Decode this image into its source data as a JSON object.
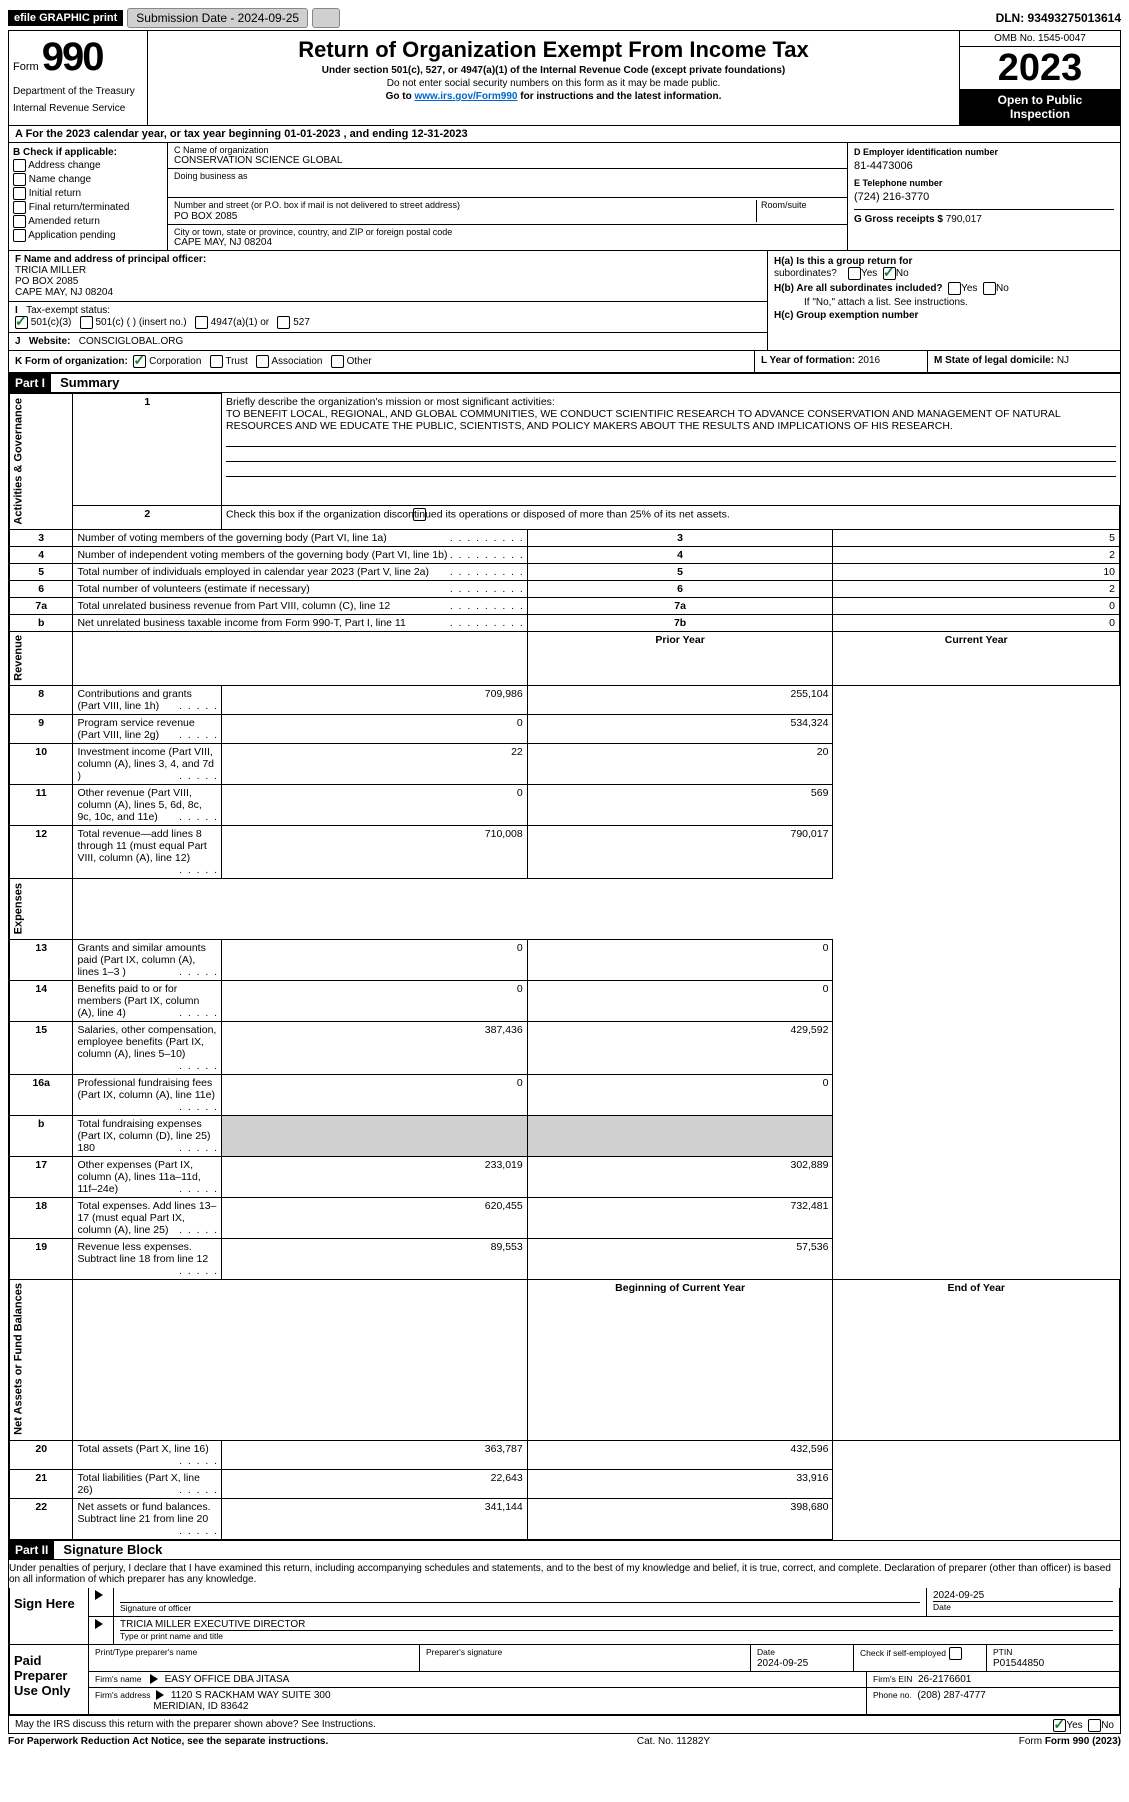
{
  "topbar": {
    "efile": "efile GRAPHIC print",
    "submission": "Submission Date - 2024-09-25",
    "dln": "DLN: 93493275013614"
  },
  "header": {
    "form_label": "Form",
    "form_number": "990",
    "title": "Return of Organization Exempt From Income Tax",
    "subtitle": "Under section 501(c), 527, or 4947(a)(1) of the Internal Revenue Code (except private foundations)",
    "warning": "Do not enter social security numbers on this form as it may be made public.",
    "goto": "Go to ",
    "url": "www.irs.gov/Form990",
    "goto_suffix": " for instructions and the latest information.",
    "dept": "Department of the Treasury",
    "irs": "Internal Revenue Service",
    "omb": "OMB No. 1545-0047",
    "year": "2023",
    "inspect1": "Open to Public",
    "inspect2": "Inspection"
  },
  "rowA": "A For the 2023 calendar year, or tax year beginning 01-01-2023   , and ending 12-31-2023",
  "colB": {
    "label": "B Check if applicable:",
    "items": [
      "Address change",
      "Name change",
      "Initial return",
      "Final return/terminated",
      "Amended return",
      "Application pending"
    ]
  },
  "colC": {
    "name_label": "C Name of organization",
    "name": "CONSERVATION SCIENCE GLOBAL",
    "dba_label": "Doing business as",
    "dba": "",
    "street_label": "Number and street (or P.O. box if mail is not delivered to street address)",
    "street": "PO BOX 2085",
    "room_label": "Room/suite",
    "room": "",
    "city_label": "City or town, state or province, country, and ZIP or foreign postal code",
    "city": "CAPE MAY, NJ  08204"
  },
  "colD": {
    "ein_label": "D Employer identification number",
    "ein": "81-4473006",
    "phone_label": "E Telephone number",
    "phone": "(724) 216-3770",
    "gross_label": "G Gross receipts $",
    "gross": "790,017"
  },
  "rowF": {
    "label": "F  Name and address of principal officer:",
    "name": "TRICIA MILLER",
    "street": "PO BOX 2085",
    "city": "CAPE MAY, NJ  08204"
  },
  "rowH": {
    "a": "H(a)  Is this a group return for",
    "a2": "subordinates?",
    "b": "H(b)  Are all subordinates included?",
    "b_note": "If \"No,\" attach a list. See instructions.",
    "c": "H(c)  Group exemption number",
    "yes": "Yes",
    "no": "No"
  },
  "rowI": {
    "label": "Tax-exempt status:",
    "opts": [
      "501(c)(3)",
      "501(c) (  ) (insert no.)",
      "4947(a)(1) or",
      "527"
    ]
  },
  "rowJ": {
    "label": "Website:",
    "value": "CONSCIGLOBAL.ORG"
  },
  "rowK": {
    "label": "K Form of organization:",
    "opts": [
      "Corporation",
      "Trust",
      "Association",
      "Other"
    ],
    "year_label": "L Year of formation:",
    "year": "2016",
    "state_label": "M State of legal domicile:",
    "state": "NJ"
  },
  "part1": {
    "header": "Part I",
    "title": "Summary",
    "line1_label": "Briefly describe the organization's mission or most significant activities:",
    "mission": "TO BENEFIT LOCAL, REGIONAL, AND GLOBAL COMMUNITIES, WE CONDUCT SCIENTIFIC RESEARCH TO ADVANCE CONSERVATION AND MANAGEMENT OF NATURAL RESOURCES AND WE EDUCATE THE PUBLIC, SCIENTISTS, AND POLICY MAKERS ABOUT THE RESULTS AND IMPLICATIONS OF HIS RESEARCH.",
    "line2": "Check this box       if the organization discontinued its operations or disposed of more than 25% of its net assets.",
    "vert_gov": "Activities & Governance",
    "vert_rev": "Revenue",
    "vert_exp": "Expenses",
    "vert_net": "Net Assets or Fund Balances",
    "lines_gov": [
      {
        "n": "3",
        "d": "Number of voting members of the governing body (Part VI, line 1a)",
        "box": "3",
        "v": "5"
      },
      {
        "n": "4",
        "d": "Number of independent voting members of the governing body (Part VI, line 1b)",
        "box": "4",
        "v": "2"
      },
      {
        "n": "5",
        "d": "Total number of individuals employed in calendar year 2023 (Part V, line 2a)",
        "box": "5",
        "v": "10"
      },
      {
        "n": "6",
        "d": "Total number of volunteers (estimate if necessary)",
        "box": "6",
        "v": "2"
      },
      {
        "n": "7a",
        "d": "Total unrelated business revenue from Part VIII, column (C), line 12",
        "box": "7a",
        "v": "0"
      },
      {
        "n": "b",
        "d": "Net unrelated business taxable income from Form 990-T, Part I, line 11",
        "box": "7b",
        "v": "0"
      }
    ],
    "col_prior": "Prior Year",
    "col_current": "Current Year",
    "lines_rev": [
      {
        "n": "8",
        "d": "Contributions and grants (Part VIII, line 1h)",
        "p": "709,986",
        "c": "255,104"
      },
      {
        "n": "9",
        "d": "Program service revenue (Part VIII, line 2g)",
        "p": "0",
        "c": "534,324"
      },
      {
        "n": "10",
        "d": "Investment income (Part VIII, column (A), lines 3, 4, and 7d )",
        "p": "22",
        "c": "20"
      },
      {
        "n": "11",
        "d": "Other revenue (Part VIII, column (A), lines 5, 6d, 8c, 9c, 10c, and 11e)",
        "p": "0",
        "c": "569"
      },
      {
        "n": "12",
        "d": "Total revenue—add lines 8 through 11 (must equal Part VIII, column (A), line 12)",
        "p": "710,008",
        "c": "790,017"
      }
    ],
    "lines_exp": [
      {
        "n": "13",
        "d": "Grants and similar amounts paid (Part IX, column (A), lines 1–3 )",
        "p": "0",
        "c": "0"
      },
      {
        "n": "14",
        "d": "Benefits paid to or for members (Part IX, column (A), line 4)",
        "p": "0",
        "c": "0"
      },
      {
        "n": "15",
        "d": "Salaries, other compensation, employee benefits (Part IX, column (A), lines 5–10)",
        "p": "387,436",
        "c": "429,592"
      },
      {
        "n": "16a",
        "d": "Professional fundraising fees (Part IX, column (A), line 11e)",
        "p": "0",
        "c": "0"
      },
      {
        "n": "b",
        "d": "Total fundraising expenses (Part IX, column (D), line 25) 180",
        "p": "",
        "c": "",
        "shaded": true
      },
      {
        "n": "17",
        "d": "Other expenses (Part IX, column (A), lines 11a–11d, 11f–24e)",
        "p": "233,019",
        "c": "302,889"
      },
      {
        "n": "18",
        "d": "Total expenses. Add lines 13–17 (must equal Part IX, column (A), line 25)",
        "p": "620,455",
        "c": "732,481"
      },
      {
        "n": "19",
        "d": "Revenue less expenses. Subtract line 18 from line 12",
        "p": "89,553",
        "c": "57,536"
      }
    ],
    "col_begin": "Beginning of Current Year",
    "col_end": "End of Year",
    "lines_net": [
      {
        "n": "20",
        "d": "Total assets (Part X, line 16)",
        "p": "363,787",
        "c": "432,596"
      },
      {
        "n": "21",
        "d": "Total liabilities (Part X, line 26)",
        "p": "22,643",
        "c": "33,916"
      },
      {
        "n": "22",
        "d": "Net assets or fund balances. Subtract line 21 from line 20",
        "p": "341,144",
        "c": "398,680"
      }
    ]
  },
  "part2": {
    "header": "Part II",
    "title": "Signature Block",
    "perjury": "Under penalties of perjury, I declare that I have examined this return, including accompanying schedules and statements, and to the best of my knowledge and belief, it is true, correct, and complete. Declaration of preparer (other than officer) is based on all information of which preparer has any knowledge.",
    "sign_here": "Sign Here",
    "sig_officer": "Signature of officer",
    "officer_name": "TRICIA MILLER  EXECUTIVE DIRECTOR",
    "type_name": "Type or print name and title",
    "date_label": "Date",
    "date": "2024-09-25",
    "paid": "Paid Preparer Use Only",
    "print_label": "Print/Type preparer's name",
    "prep_sig_label": "Preparer's signature",
    "prep_date": "2024-09-25",
    "self_emp": "Check        if self-employed",
    "ptin_label": "PTIN",
    "ptin": "P01544850",
    "firm_name_label": "Firm's name",
    "firm_name": "EASY OFFICE DBA JITASA",
    "firm_ein_label": "Firm's EIN",
    "firm_ein": "26-2176601",
    "firm_addr_label": "Firm's address",
    "firm_addr1": "1120 S RACKHAM WAY SUITE 300",
    "firm_addr2": "MERIDIAN, ID  83642",
    "firm_phone_label": "Phone no.",
    "firm_phone": "(208) 287-4777",
    "discuss": "May the IRS discuss this return with the preparer shown above? See Instructions."
  },
  "footer": {
    "pra": "For Paperwork Reduction Act Notice, see the separate instructions.",
    "cat": "Cat. No. 11282Y",
    "form": "Form 990 (2023)"
  }
}
